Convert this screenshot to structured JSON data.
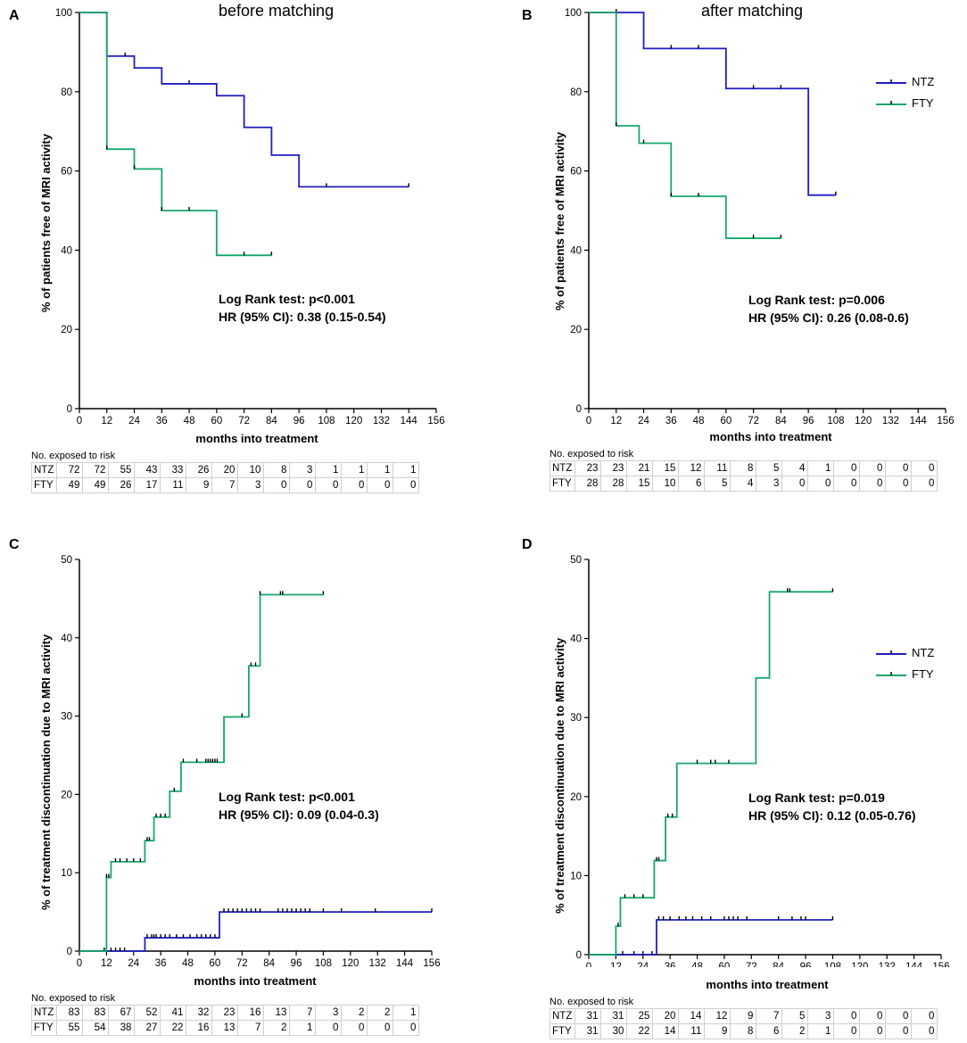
{
  "colors": {
    "NTZ": "#1f1fc0",
    "FTY": "#17a86a",
    "axis": "#000000"
  },
  "legend_labels": [
    "NTZ",
    "FTY"
  ],
  "risk_caption": "No. exposed to risk",
  "risk_rows": [
    "NTZ",
    "FTY"
  ],
  "chart_data": [
    {
      "type": "line",
      "panel": "A",
      "subtitle": "before matching",
      "ylabel": "% of patients free of MRI activity",
      "xlabel": "months into treatment",
      "x_ticks": [
        0,
        12,
        24,
        36,
        48,
        60,
        72,
        84,
        96,
        108,
        120,
        132,
        144,
        156
      ],
      "y_ticks": [
        0,
        20,
        40,
        60,
        80,
        100
      ],
      "xlim": [
        0,
        156
      ],
      "ylim": [
        0,
        100
      ],
      "stats": [
        "Log Rank test: p<0.001",
        "HR (95% CI): 0.38 (0.15-0.54)"
      ],
      "legend": false,
      "series": [
        {
          "name": "NTZ",
          "steps": [
            [
              0,
              100
            ],
            [
              12,
              89
            ],
            [
              24,
              86
            ],
            [
              36,
              82
            ],
            [
              60,
              79
            ],
            [
              72,
              71
            ],
            [
              84,
              64
            ],
            [
              96,
              56
            ]
          ],
          "end": 144,
          "censor": [
            20,
            48,
            108,
            144
          ]
        },
        {
          "name": "FTY",
          "steps": [
            [
              0,
              100
            ],
            [
              12,
              65.5
            ],
            [
              24,
              60.5
            ],
            [
              36,
              50
            ],
            [
              60,
              38.7
            ]
          ],
          "end": 84,
          "censor": [
            12,
            24,
            36,
            48,
            72,
            84
          ]
        }
      ],
      "risk": {
        "NTZ": [
          72,
          72,
          55,
          43,
          33,
          26,
          20,
          10,
          8,
          3,
          1,
          1,
          1,
          1
        ],
        "FTY": [
          49,
          49,
          26,
          17,
          11,
          9,
          7,
          3,
          0,
          0,
          0,
          0,
          0,
          0
        ]
      }
    },
    {
      "type": "line",
      "panel": "B",
      "subtitle": "after matching",
      "ylabel": "% of patients free of MRI activity",
      "xlabel": "months into treatment",
      "x_ticks": [
        0,
        12,
        24,
        36,
        48,
        60,
        72,
        84,
        96,
        108,
        120,
        132,
        144,
        156
      ],
      "y_ticks": [
        0,
        20,
        40,
        60,
        80,
        100
      ],
      "xlim": [
        0,
        156
      ],
      "ylim": [
        0,
        100
      ],
      "stats": [
        "Log Rank test: p=0.006",
        "HR (95% CI): 0.26 (0.08-0.6)"
      ],
      "legend": true,
      "series": [
        {
          "name": "NTZ",
          "steps": [
            [
              0,
              100
            ],
            [
              24,
              90.9
            ],
            [
              60,
              80.8
            ],
            [
              96,
              53.9
            ]
          ],
          "end": 108,
          "censor": [
            12,
            36,
            48,
            72,
            84,
            108
          ]
        },
        {
          "name": "FTY",
          "steps": [
            [
              0,
              100
            ],
            [
              12,
              71.4
            ],
            [
              22,
              67
            ],
            [
              36,
              53.6
            ],
            [
              60,
              43
            ]
          ],
          "end": 84,
          "censor": [
            12,
            24,
            36,
            48,
            72,
            84
          ]
        }
      ],
      "risk": {
        "NTZ": [
          23,
          23,
          21,
          15,
          12,
          11,
          8,
          5,
          4,
          1,
          0,
          0,
          0,
          0
        ],
        "FTY": [
          28,
          28,
          15,
          10,
          6,
          5,
          4,
          3,
          0,
          0,
          0,
          0,
          0,
          0
        ]
      }
    },
    {
      "type": "line",
      "panel": "C",
      "subtitle": "",
      "ylabel": "% of treatment discontinuation due to MRI activity",
      "xlabel": "months into treatment",
      "x_ticks": [
        0,
        12,
        24,
        36,
        48,
        60,
        72,
        84,
        96,
        108,
        120,
        132,
        144,
        156
      ],
      "y_ticks": [
        0,
        10,
        20,
        30,
        40,
        50
      ],
      "xlim": [
        0,
        156
      ],
      "ylim": [
        0,
        50
      ],
      "stats": [
        "Log Rank test: p<0.001",
        "HR (95% CI): 0.09 (0.04-0.3)"
      ],
      "legend": false,
      "series": [
        {
          "name": "NTZ",
          "steps": [
            [
              0,
              0
            ],
            [
              29,
              1.7
            ],
            [
              62,
              5
            ]
          ],
          "end": 156,
          "censor": [
            11,
            12,
            14,
            16,
            18,
            20,
            30,
            32,
            33,
            34,
            36,
            38,
            40,
            43,
            46,
            49,
            52,
            54,
            56,
            58,
            60,
            64,
            66,
            68,
            70,
            72,
            74,
            76,
            78,
            80,
            88,
            90,
            92,
            94,
            96,
            98,
            100,
            102,
            108,
            116,
            131,
            156
          ]
        },
        {
          "name": "FTY",
          "steps": [
            [
              0,
              0
            ],
            [
              12,
              9.4
            ],
            [
              14,
              11.4
            ],
            [
              29,
              14.1
            ],
            [
              33,
              17.1
            ],
            [
              40,
              20.4
            ],
            [
              45,
              24.1
            ],
            [
              64,
              29.9
            ],
            [
              75,
              36.4
            ],
            [
              80,
              45.5
            ]
          ],
          "end": 108,
          "censor": [
            12,
            13,
            16,
            18,
            21,
            24,
            27,
            30,
            31,
            34,
            36,
            38,
            42,
            46,
            52,
            56,
            57,
            58,
            59,
            60,
            61,
            72,
            76,
            78,
            80,
            89,
            90,
            108
          ]
        }
      ],
      "risk": {
        "NTZ": [
          83,
          83,
          67,
          52,
          41,
          32,
          23,
          16,
          13,
          7,
          3,
          2,
          2,
          1
        ],
        "FTY": [
          55,
          54,
          38,
          27,
          22,
          16,
          13,
          7,
          2,
          1,
          0,
          0,
          0,
          0
        ]
      }
    },
    {
      "type": "line",
      "panel": "D",
      "subtitle": "",
      "ylabel": "% of treatment discontinuation due to MRI activity",
      "xlabel": "months into treatment",
      "x_ticks": [
        0,
        12,
        24,
        36,
        48,
        60,
        72,
        84,
        96,
        108,
        120,
        132,
        144,
        156
      ],
      "y_ticks": [
        0,
        10,
        20,
        30,
        40,
        50
      ],
      "xlim": [
        0,
        156
      ],
      "ylim": [
        0,
        50
      ],
      "stats": [
        "Log Rank test: p=0.019",
        "HR (95% CI): 0.12 (0.05-0.76)"
      ],
      "legend": true,
      "series": [
        {
          "name": "NTZ",
          "steps": [
            [
              0,
              0
            ],
            [
              30,
              4.4
            ]
          ],
          "end": 108,
          "censor": [
            12,
            15,
            20,
            24,
            28,
            31,
            33,
            36,
            40,
            43,
            46,
            50,
            54,
            60,
            62,
            64,
            66,
            70,
            84,
            90,
            94,
            96,
            108
          ]
        },
        {
          "name": "FTY",
          "steps": [
            [
              0,
              0
            ],
            [
              12,
              3.6
            ],
            [
              14,
              7.2
            ],
            [
              29,
              11.9
            ],
            [
              34,
              17.4
            ],
            [
              39,
              24.2
            ],
            [
              74,
              35
            ],
            [
              80,
              45.9
            ]
          ],
          "end": 108,
          "censor": [
            13,
            16,
            20,
            24,
            30,
            31,
            35,
            37,
            48,
            54,
            56,
            62,
            88,
            89,
            108
          ]
        }
      ],
      "risk": {
        "NTZ": [
          31,
          31,
          25,
          20,
          14,
          12,
          9,
          7,
          5,
          3,
          0,
          0,
          0,
          0
        ],
        "FTY": [
          31,
          30,
          22,
          14,
          11,
          9,
          8,
          6,
          2,
          1,
          0,
          0,
          0,
          0
        ]
      }
    }
  ]
}
